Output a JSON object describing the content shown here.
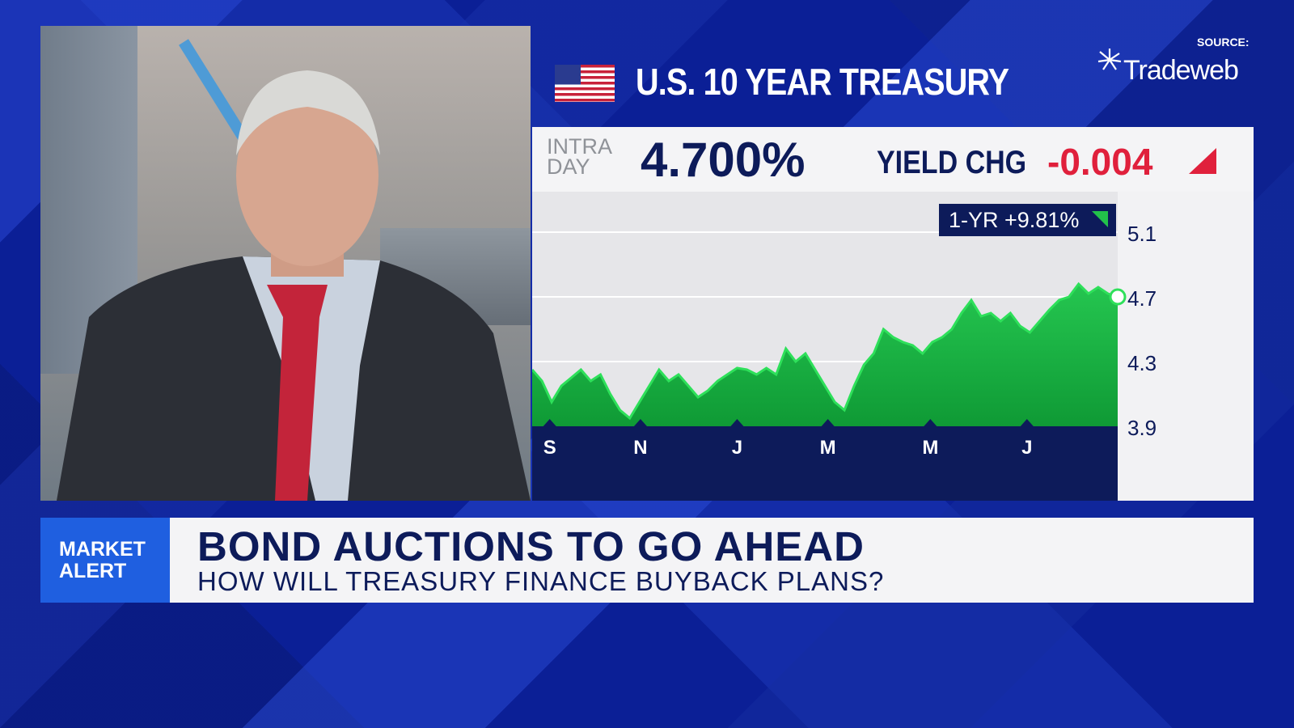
{
  "header": {
    "title": "U.S. 10 YEAR TREASURY",
    "source_label": "SOURCE:",
    "source_name": "Tradeweb"
  },
  "stats": {
    "intraday_label": "INTRA DAY",
    "price": "4.700%",
    "yield_change_label": "YIELD CHG",
    "yield_change": "-0.004",
    "one_year_change": "1-YR +9.81%"
  },
  "colors": {
    "navy": "#0d1b5a",
    "green": "#22c24a",
    "red": "#e0203c",
    "accent_blue": "#1f5fe0"
  },
  "lower_third": {
    "tag_line1": "MARKET",
    "tag_line2": "ALERT",
    "headline": "BOND AUCTIONS TO GO AHEAD",
    "subhead": "HOW WILL TREASURY FINANCE BUYBACK PLANS?"
  },
  "chart_data": {
    "type": "area",
    "title": "U.S. 10 YEAR TREASURY",
    "ylim": [
      3.9,
      5.1
    ],
    "y_ticks": [
      "5.1",
      "4.7",
      "4.3",
      "3.9"
    ],
    "x_ticks": [
      "S",
      "N",
      "J",
      "M",
      "M",
      "J"
    ],
    "x_tick_positions": [
      0.03,
      0.185,
      0.35,
      0.505,
      0.68,
      0.845
    ],
    "grid": true,
    "values": [
      4.25,
      4.18,
      4.05,
      4.15,
      4.2,
      4.25,
      4.18,
      4.22,
      4.1,
      4.0,
      3.95,
      4.05,
      4.15,
      4.25,
      4.18,
      4.22,
      4.15,
      4.08,
      4.12,
      4.18,
      4.22,
      4.26,
      4.25,
      4.22,
      4.26,
      4.22,
      4.38,
      4.3,
      4.35,
      4.25,
      4.15,
      4.05,
      4.0,
      4.15,
      4.28,
      4.35,
      4.5,
      4.45,
      4.42,
      4.4,
      4.35,
      4.42,
      4.45,
      4.5,
      4.6,
      4.68,
      4.58,
      4.6,
      4.55,
      4.6,
      4.52,
      4.48,
      4.55,
      4.62,
      4.68,
      4.7,
      4.78,
      4.72,
      4.76,
      4.72,
      4.7
    ]
  }
}
